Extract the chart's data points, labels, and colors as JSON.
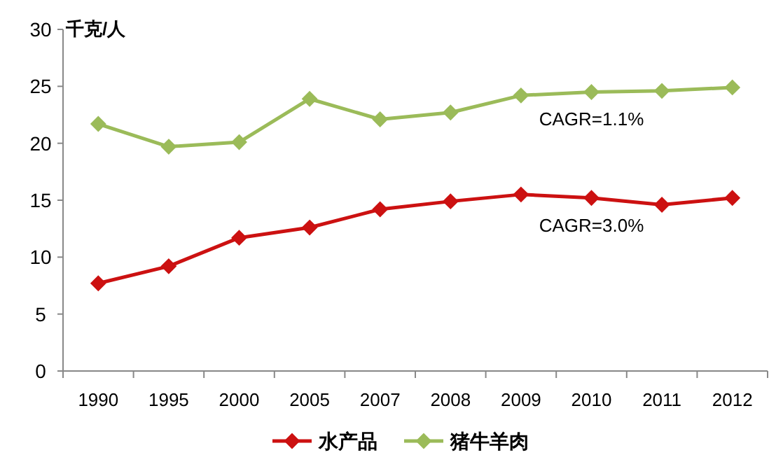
{
  "chart_data": {
    "type": "line",
    "ylabel": "千克/人",
    "categories": [
      "1990",
      "1995",
      "2000",
      "2005",
      "2007",
      "2008",
      "2009",
      "2010",
      "2011",
      "2012"
    ],
    "series": [
      {
        "name": "水产品",
        "color": "#cc1111",
        "values": [
          7.7,
          9.2,
          11.7,
          12.6,
          14.2,
          14.9,
          15.5,
          15.2,
          14.6,
          15.2
        ]
      },
      {
        "name": "猪牛羊肉",
        "color": "#9bbb59",
        "values": [
          21.7,
          19.7,
          20.1,
          23.9,
          22.1,
          22.7,
          24.2,
          24.5,
          24.6,
          24.9
        ]
      }
    ],
    "ylim": [
      0,
      30
    ],
    "yticks": [
      0,
      5,
      10,
      15,
      20,
      25,
      30
    ],
    "marker": "diamond",
    "grid": false,
    "legend": "bottom",
    "annotations": [
      {
        "text": "CAGR=1.1%",
        "x": "2010",
        "y": 24.5
      },
      {
        "text": "CAGR=3.0%",
        "x": "2010",
        "y": 15.2
      }
    ]
  }
}
